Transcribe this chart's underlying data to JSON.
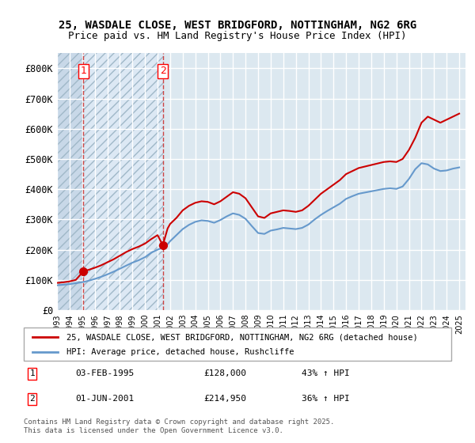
{
  "title_line1": "25, WASDALE CLOSE, WEST BRIDGFORD, NOTTINGHAM, NG2 6RG",
  "title_line2": "Price paid vs. HM Land Registry's House Price Index (HPI)",
  "legend_line1": "25, WASDALE CLOSE, WEST BRIDGFORD, NOTTINGHAM, NG2 6RG (detached house)",
  "legend_line2": "HPI: Average price, detached house, Rushcliffe",
  "annotation_footer": "Contains HM Land Registry data © Crown copyright and database right 2025.\nThis data is licensed under the Open Government Licence v3.0.",
  "sale1_label": "1",
  "sale1_date": "03-FEB-1995",
  "sale1_price": "£128,000",
  "sale1_hpi": "43% ↑ HPI",
  "sale1_year": 1995.09,
  "sale1_value": 128000,
  "sale2_label": "2",
  "sale2_date": "01-JUN-2001",
  "sale2_price": "£214,950",
  "sale2_hpi": "36% ↑ HPI",
  "sale2_year": 2001.42,
  "sale2_value": 214950,
  "hatch_color": "#c8d8e8",
  "hatch_pattern": "///",
  "line_color_red": "#cc0000",
  "line_color_blue": "#6699cc",
  "background_plot": "#dce8f0",
  "background_hatch": "#c8d8e8",
  "grid_color": "#ffffff",
  "ylabel": "",
  "ylim": [
    0,
    850000
  ],
  "xlim_start": 1993.0,
  "xlim_end": 2025.5,
  "yticks": [
    0,
    100000,
    200000,
    300000,
    400000,
    500000,
    600000,
    700000,
    800000
  ],
  "ytick_labels": [
    "£0",
    "£100K",
    "£200K",
    "£300K",
    "£400K",
    "£500K",
    "£600K",
    "£700K",
    "£800K"
  ],
  "xticks": [
    1993,
    1994,
    1995,
    1996,
    1997,
    1998,
    1999,
    2000,
    2001,
    2002,
    2003,
    2004,
    2005,
    2006,
    2007,
    2008,
    2009,
    2010,
    2011,
    2012,
    2013,
    2014,
    2015,
    2016,
    2017,
    2018,
    2019,
    2020,
    2021,
    2022,
    2023,
    2024,
    2025
  ],
  "red_line_data": {
    "years": [
      1993.0,
      1993.5,
      1994.0,
      1994.5,
      1995.09,
      1995.5,
      1996.0,
      1996.5,
      1997.0,
      1997.5,
      1998.0,
      1998.5,
      1999.0,
      1999.5,
      2000.0,
      2000.5,
      2001.0,
      2001.42,
      2001.8,
      2002.0,
      2002.5,
      2003.0,
      2003.5,
      2004.0,
      2004.5,
      2005.0,
      2005.5,
      2006.0,
      2006.5,
      2007.0,
      2007.5,
      2008.0,
      2008.5,
      2009.0,
      2009.5,
      2010.0,
      2010.5,
      2011.0,
      2011.5,
      2012.0,
      2012.5,
      2013.0,
      2013.5,
      2014.0,
      2014.5,
      2015.0,
      2015.5,
      2016.0,
      2016.5,
      2017.0,
      2017.5,
      2018.0,
      2018.5,
      2019.0,
      2019.5,
      2020.0,
      2020.5,
      2021.0,
      2021.5,
      2022.0,
      2022.5,
      2023.0,
      2023.5,
      2024.0,
      2024.5,
      2025.0
    ],
    "values": [
      90000,
      92000,
      95000,
      100000,
      128000,
      133000,
      140000,
      148000,
      158000,
      168000,
      180000,
      192000,
      202000,
      210000,
      220000,
      235000,
      248000,
      214950,
      270000,
      285000,
      305000,
      330000,
      345000,
      355000,
      360000,
      358000,
      350000,
      360000,
      375000,
      390000,
      385000,
      370000,
      340000,
      310000,
      305000,
      320000,
      325000,
      330000,
      328000,
      325000,
      330000,
      345000,
      365000,
      385000,
      400000,
      415000,
      430000,
      450000,
      460000,
      470000,
      475000,
      480000,
      485000,
      490000,
      492000,
      490000,
      500000,
      530000,
      570000,
      620000,
      640000,
      630000,
      620000,
      630000,
      640000,
      650000
    ]
  },
  "blue_line_data": {
    "years": [
      1993.0,
      1993.5,
      1994.0,
      1994.5,
      1995.09,
      1995.5,
      1996.0,
      1996.5,
      1997.0,
      1997.5,
      1998.0,
      1998.5,
      1999.0,
      1999.5,
      2000.0,
      2000.5,
      2001.0,
      2001.42,
      2001.8,
      2002.0,
      2002.5,
      2003.0,
      2003.5,
      2004.0,
      2004.5,
      2005.0,
      2005.5,
      2006.0,
      2006.5,
      2007.0,
      2007.5,
      2008.0,
      2008.5,
      2009.0,
      2009.5,
      2010.0,
      2010.5,
      2011.0,
      2011.5,
      2012.0,
      2012.5,
      2013.0,
      2013.5,
      2014.0,
      2014.5,
      2015.0,
      2015.5,
      2016.0,
      2016.5,
      2017.0,
      2017.5,
      2018.0,
      2018.5,
      2019.0,
      2019.5,
      2020.0,
      2020.5,
      2021.0,
      2021.5,
      2022.0,
      2022.5,
      2023.0,
      2023.5,
      2024.0,
      2024.5,
      2025.0
    ],
    "values": [
      82000,
      84000,
      86000,
      89000,
      93000,
      97000,
      103000,
      110000,
      118000,
      127000,
      137000,
      147000,
      157000,
      165000,
      175000,
      190000,
      200000,
      207000,
      218000,
      228000,
      248000,
      268000,
      282000,
      292000,
      297000,
      295000,
      289000,
      298000,
      310000,
      320000,
      315000,
      302000,
      278000,
      255000,
      252000,
      263000,
      267000,
      272000,
      270000,
      268000,
      272000,
      283000,
      300000,
      315000,
      328000,
      340000,
      352000,
      368000,
      377000,
      385000,
      389000,
      393000,
      397000,
      401000,
      403000,
      401000,
      409000,
      434000,
      466000,
      486000,
      482000,
      468000,
      460000,
      462000,
      468000,
      472000
    ]
  }
}
